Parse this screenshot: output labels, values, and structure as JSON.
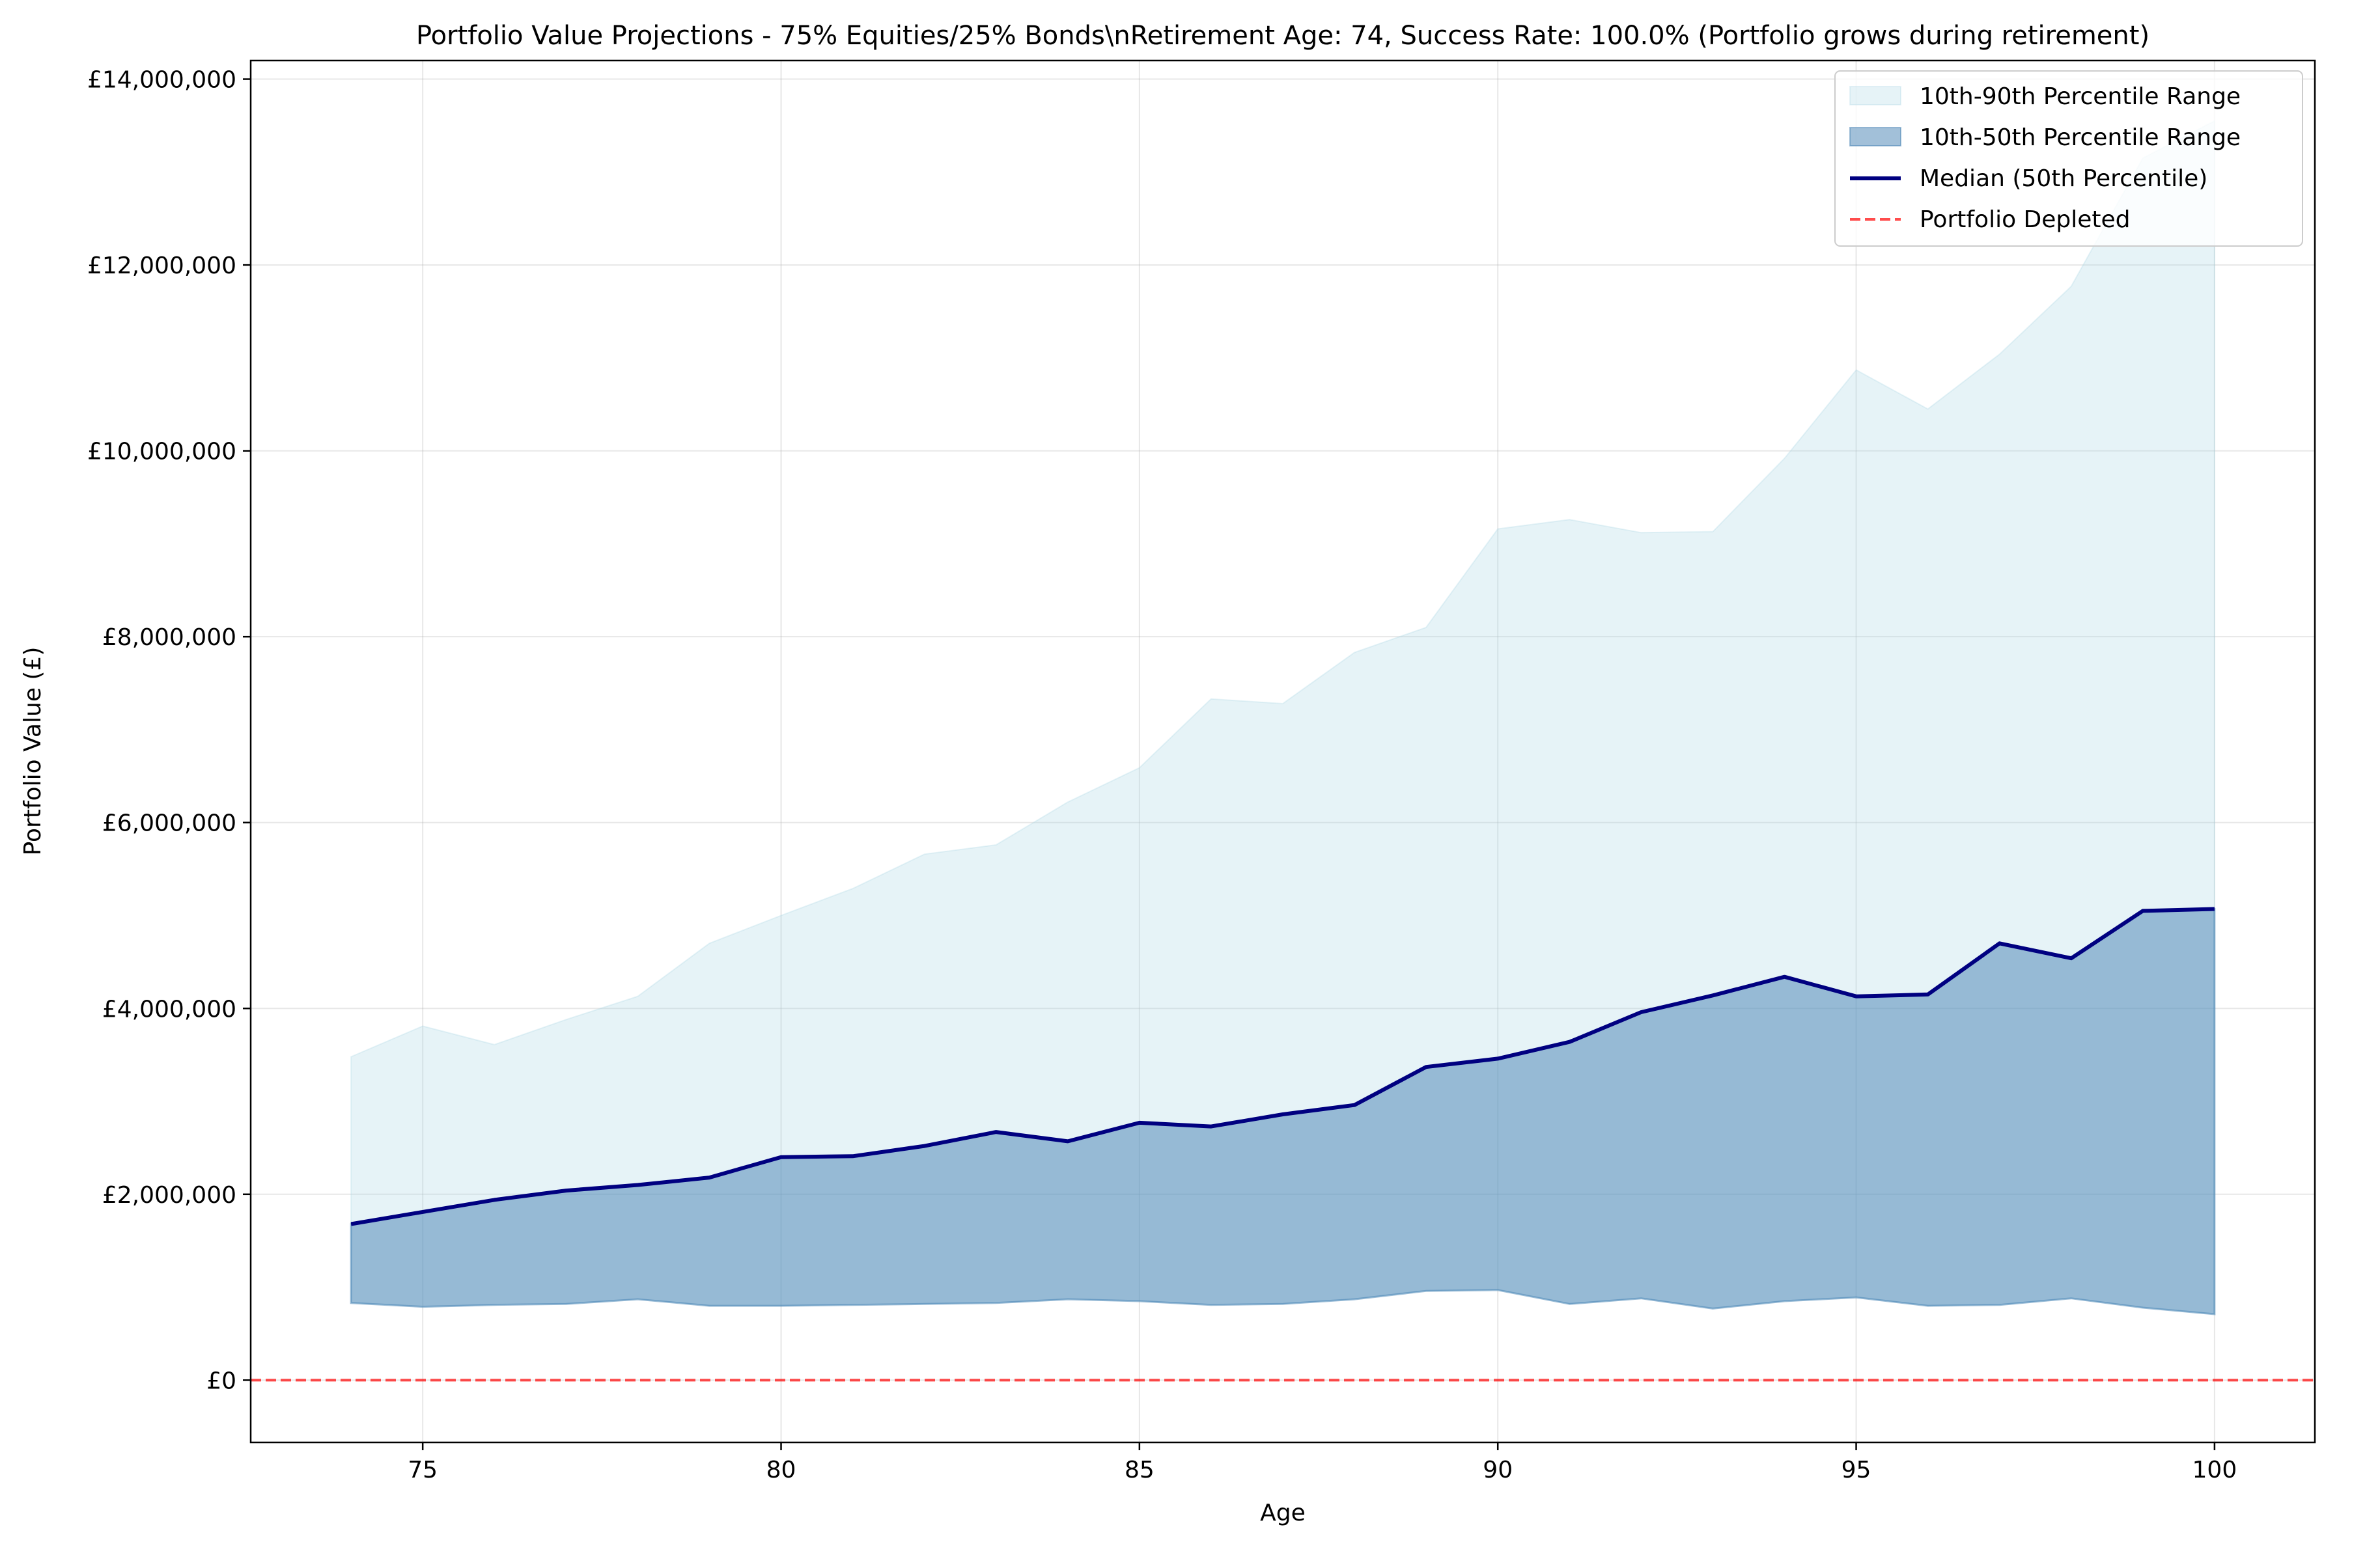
{
  "chart_data": {
    "type": "area",
    "title": "Portfolio Value Projections - 75% Equities/25% Bonds\\nRetirement Age: 74, Success Rate: 100.0% (Portfolio grows during retirement)",
    "xlabel": "Age",
    "ylabel": "Portfolio Value (£)",
    "xlim": [
      72.6,
      101.4
    ],
    "ylim": [
      -670000,
      14200000
    ],
    "x_ticks": [
      75,
      80,
      85,
      90,
      95,
      100
    ],
    "x_tick_labels": [
      "75",
      "80",
      "85",
      "90",
      "95",
      "100"
    ],
    "y_ticks": [
      0,
      2000000,
      4000000,
      6000000,
      8000000,
      10000000,
      12000000,
      14000000
    ],
    "y_tick_labels": [
      "£0",
      "£2,000,000",
      "£4,000,000",
      "£6,000,000",
      "£8,000,000",
      "£10,000,000",
      "£12,000,000",
      "£14,000,000"
    ],
    "grid": true,
    "legend_position": "top-right",
    "x": [
      74,
      75,
      76,
      77,
      78,
      79,
      80,
      81,
      82,
      83,
      84,
      85,
      86,
      87,
      88,
      89,
      90,
      91,
      92,
      93,
      94,
      95,
      96,
      97,
      98,
      99,
      100
    ],
    "series": [
      {
        "name": "10th-90th Percentile Range",
        "kind": "band",
        "color": "#add8e6",
        "lower": [
          830000,
          790000,
          810000,
          820000,
          870000,
          800000,
          800000,
          810000,
          820000,
          830000,
          870000,
          850000,
          810000,
          820000,
          870000,
          960000,
          970000,
          820000,
          880000,
          770000,
          850000,
          890000,
          800000,
          810000,
          880000,
          780000,
          710000
        ],
        "upper": [
          3480000,
          3810000,
          3610000,
          3880000,
          4130000,
          4700000,
          5000000,
          5290000,
          5660000,
          5760000,
          6220000,
          6590000,
          7330000,
          7280000,
          7830000,
          8100000,
          9160000,
          9260000,
          9120000,
          9130000,
          9920000,
          10870000,
          10450000,
          11040000,
          11770000,
          13150000,
          13550000
        ]
      },
      {
        "name": "10th-50th Percentile Range",
        "kind": "band",
        "color": "#4682b4",
        "lower": [
          830000,
          790000,
          810000,
          820000,
          870000,
          800000,
          800000,
          810000,
          820000,
          830000,
          870000,
          850000,
          810000,
          820000,
          870000,
          960000,
          970000,
          820000,
          880000,
          770000,
          850000,
          890000,
          800000,
          810000,
          880000,
          780000,
          710000
        ],
        "upper": [
          1680000,
          1810000,
          1940000,
          2040000,
          2100000,
          2180000,
          2400000,
          2410000,
          2520000,
          2670000,
          2570000,
          2770000,
          2730000,
          2860000,
          2960000,
          3370000,
          3460000,
          3640000,
          3960000,
          4140000,
          4340000,
          4130000,
          4150000,
          4700000,
          4540000,
          5050000,
          5070000
        ]
      },
      {
        "name": "Median (50th Percentile)",
        "kind": "line",
        "color": "#000080",
        "values": [
          1680000,
          1810000,
          1940000,
          2040000,
          2100000,
          2180000,
          2400000,
          2410000,
          2520000,
          2670000,
          2570000,
          2770000,
          2730000,
          2860000,
          2960000,
          3370000,
          3460000,
          3640000,
          3960000,
          4140000,
          4340000,
          4130000,
          4150000,
          4700000,
          4540000,
          5050000,
          5070000
        ]
      },
      {
        "name": "Portfolio Depleted",
        "kind": "hline",
        "color": "#ff0000",
        "value": 0
      }
    ]
  }
}
